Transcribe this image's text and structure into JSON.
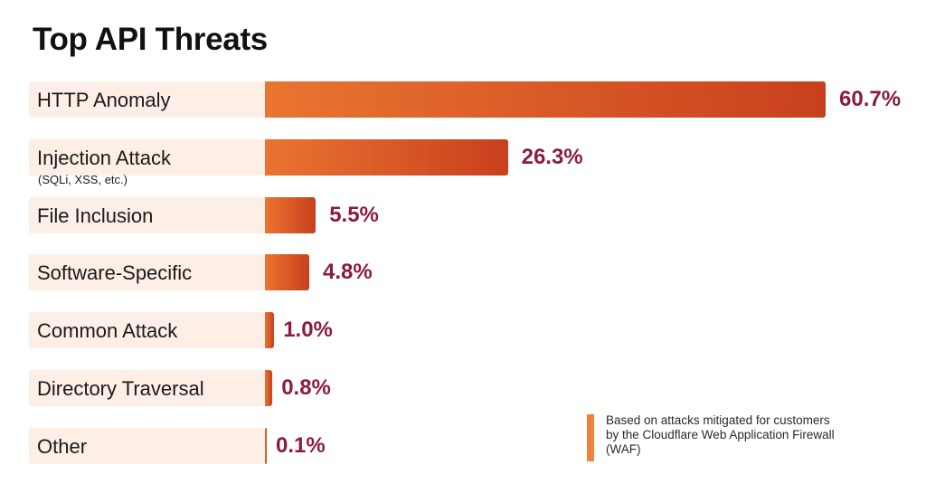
{
  "chart_data": {
    "type": "bar",
    "orientation": "horizontal",
    "title": "Top API Threats",
    "categories": [
      "HTTP Anomaly",
      "Injection Attack",
      "File Inclusion",
      "Software-Specific",
      "Common Attack",
      "Directory Traversal",
      "Other"
    ],
    "category_sublabels": [
      "",
      "(SQLi, XSS, etc.)",
      "",
      "",
      "",
      "",
      ""
    ],
    "values": [
      60.7,
      26.3,
      5.5,
      4.8,
      1.0,
      0.8,
      0.1
    ],
    "value_labels": [
      "60.7%",
      "26.3%",
      "5.5%",
      "4.8%",
      "1.0%",
      "0.8%",
      "0.1%"
    ],
    "unit": "%",
    "xlim": [
      0,
      60.7
    ],
    "grid": false,
    "legend": "none",
    "bar_colors": [
      "#ea7431",
      "#c8401d"
    ],
    "label_background": "#fdeee6",
    "value_label_color": "#8c1b3f"
  },
  "note": {
    "text": "Based on attacks mitigated for customers by the Cloudflare Web Application Firewall (WAF)",
    "accent_color": "#f0813a"
  }
}
